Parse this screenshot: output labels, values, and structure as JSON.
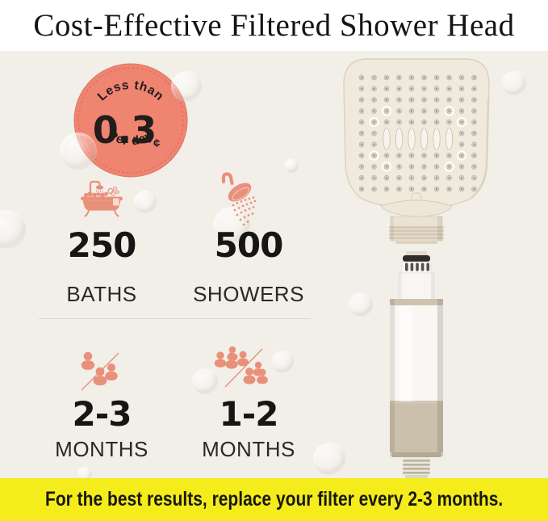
{
  "title": "Cost-Effective Filtered Shower Head",
  "colors": {
    "coral": "#EF8471",
    "icon_coral": "#E9907B",
    "background_cream": "#F2EFE9",
    "banner_yellow": "#F4EC1B",
    "text_dark": "#1B1918"
  },
  "badge": {
    "top_text": "Less than",
    "value": "0.3",
    "unit": "¢",
    "bottom_text": "Per day"
  },
  "stats": [
    {
      "icon": "bathtub-icon",
      "value": "250",
      "label": "BATHS"
    },
    {
      "icon": "shower-icon",
      "value": "500",
      "label": "SHOWERS"
    },
    {
      "icon": "people-few-icon",
      "value": "2-3",
      "label": "MONTHS"
    },
    {
      "icon": "people-many-icon",
      "value": "1-2",
      "label": "MONTHS"
    }
  ],
  "banner": {
    "text": "For the best results, replace your filter every 2-3 months."
  }
}
